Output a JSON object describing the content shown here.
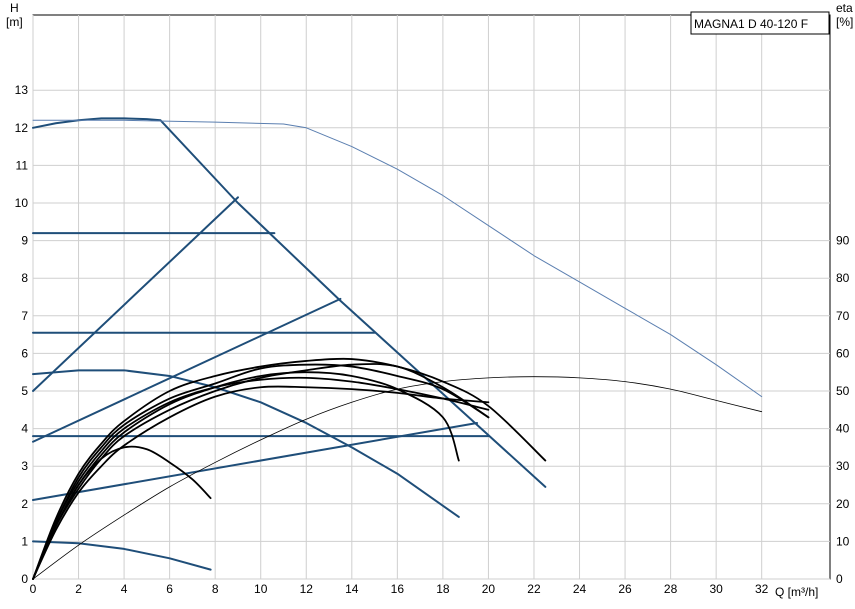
{
  "chart_data": {
    "type": "line",
    "title": "MAGNA1 D 40-120 F",
    "y_left_label": [
      "H",
      "[m]"
    ],
    "y_right_label": [
      "eta",
      "[%]"
    ],
    "x_label": "Q [m³/h]",
    "footnote": "",
    "xlim": [
      0,
      35
    ],
    "ylim_left": [
      0,
      15
    ],
    "ylim_right": [
      0,
      150
    ],
    "x_ticks": [
      0,
      2,
      4,
      6,
      8,
      10,
      12,
      14,
      16,
      18,
      20,
      22,
      24,
      26,
      28,
      30,
      32
    ],
    "y_left_ticks": [
      0,
      1,
      2,
      3,
      4,
      5,
      6,
      7,
      8,
      9,
      10,
      11,
      12,
      13
    ],
    "y_right_ticks": [
      0,
      10,
      20,
      30,
      40,
      50,
      60,
      70,
      80,
      90
    ],
    "grid": true,
    "colors": {
      "pump": "#1f4e79",
      "thin_blue": "#5b7fb0",
      "efficiency": "#000000",
      "grid": "#cfcfcf"
    },
    "series": [
      {
        "kind": "pump",
        "axis": "left",
        "color": "#1f4e79",
        "width": 2,
        "points": [
          [
            0,
            12.0
          ],
          [
            1,
            12.12
          ],
          [
            2,
            12.2
          ],
          [
            3,
            12.25
          ],
          [
            4,
            12.25
          ],
          [
            5,
            12.23
          ],
          [
            5.6,
            12.2
          ],
          [
            9.0,
            10.0
          ],
          [
            13.5,
            7.4
          ],
          [
            22.5,
            2.45
          ]
        ]
      },
      {
        "kind": "pump",
        "axis": "left",
        "color": "#1f4e79",
        "width": 2,
        "points": [
          [
            0,
            9.2
          ],
          [
            10.6,
            9.2
          ]
        ]
      },
      {
        "kind": "pump",
        "axis": "left",
        "color": "#1f4e79",
        "width": 2,
        "points": [
          [
            0,
            6.55
          ],
          [
            15.0,
            6.55
          ]
        ]
      },
      {
        "kind": "pump",
        "axis": "left",
        "color": "#1f4e79",
        "width": 2,
        "points": [
          [
            0,
            3.8
          ],
          [
            20.0,
            3.8
          ]
        ]
      },
      {
        "kind": "pump",
        "axis": "left",
        "color": "#1f4e79",
        "width": 2,
        "points": [
          [
            0,
            5.0
          ],
          [
            9.0,
            10.15
          ]
        ]
      },
      {
        "kind": "pump",
        "axis": "left",
        "color": "#1f4e79",
        "width": 2,
        "points": [
          [
            0,
            3.65
          ],
          [
            13.5,
            7.45
          ]
        ]
      },
      {
        "kind": "pump",
        "axis": "left",
        "color": "#1f4e79",
        "width": 2,
        "points": [
          [
            0,
            2.1
          ],
          [
            19.5,
            4.15
          ]
        ]
      },
      {
        "kind": "pump",
        "axis": "left",
        "color": "#1f4e79",
        "width": 2,
        "points": [
          [
            0,
            5.45
          ],
          [
            2,
            5.55
          ],
          [
            4,
            5.55
          ],
          [
            6,
            5.4
          ],
          [
            8,
            5.1
          ],
          [
            10,
            4.7
          ],
          [
            12,
            4.15
          ],
          [
            14,
            3.5
          ],
          [
            16,
            2.8
          ],
          [
            18.7,
            1.65
          ]
        ]
      },
      {
        "kind": "pump",
        "axis": "left",
        "color": "#1f4e79",
        "width": 2,
        "points": [
          [
            0,
            1.0
          ],
          [
            2,
            0.95
          ],
          [
            4,
            0.8
          ],
          [
            6,
            0.55
          ],
          [
            7.8,
            0.25
          ]
        ]
      },
      {
        "kind": "pump",
        "axis": "left",
        "color": "#5b7fb0",
        "width": 1,
        "points": [
          [
            0,
            12.2
          ],
          [
            4,
            12.2
          ],
          [
            8,
            12.15
          ],
          [
            11,
            12.1
          ],
          [
            12,
            12.0
          ],
          [
            14,
            11.5
          ],
          [
            16,
            10.9
          ],
          [
            18,
            10.2
          ],
          [
            20,
            9.4
          ],
          [
            22,
            8.6
          ],
          [
            24,
            7.9
          ],
          [
            26,
            7.2
          ],
          [
            28,
            6.5
          ],
          [
            30,
            5.7
          ],
          [
            32,
            4.85
          ]
        ]
      },
      {
        "kind": "efficiency",
        "axis": "right",
        "color": "#000000",
        "width": 0.8,
        "points": [
          [
            0,
            0
          ],
          [
            2,
            9
          ],
          [
            4,
            17
          ],
          [
            6,
            24.5
          ],
          [
            8,
            31
          ],
          [
            10,
            37
          ],
          [
            12,
            42.5
          ],
          [
            14,
            47
          ],
          [
            16,
            50.5
          ],
          [
            18,
            52.5
          ],
          [
            20,
            53.5
          ],
          [
            22,
            53.8
          ],
          [
            24,
            53.5
          ],
          [
            26,
            52.5
          ],
          [
            28,
            50.5
          ],
          [
            30,
            47.5
          ],
          [
            32,
            44.5
          ]
        ]
      },
      {
        "kind": "efficiency",
        "axis": "right",
        "color": "#000000",
        "width": 1.8,
        "points": [
          [
            0,
            0
          ],
          [
            1,
            14
          ],
          [
            2,
            25
          ],
          [
            3,
            32
          ],
          [
            4,
            35
          ],
          [
            5,
            34.5
          ],
          [
            6,
            31
          ],
          [
            7,
            26.5
          ],
          [
            7.8,
            21.5
          ]
        ]
      },
      {
        "kind": "efficiency",
        "axis": "right",
        "color": "#000000",
        "width": 1.8,
        "points": [
          [
            0,
            0
          ],
          [
            1,
            14
          ],
          [
            2,
            25
          ],
          [
            3,
            33
          ],
          [
            4,
            39
          ],
          [
            6,
            46.5
          ],
          [
            8,
            51
          ],
          [
            10,
            54
          ],
          [
            12,
            55
          ],
          [
            14,
            54
          ],
          [
            16,
            50.5
          ],
          [
            18,
            43
          ],
          [
            18.7,
            31.5
          ]
        ]
      },
      {
        "kind": "efficiency",
        "axis": "right",
        "color": "#000000",
        "width": 1.8,
        "points": [
          [
            0,
            0
          ],
          [
            1,
            15
          ],
          [
            2,
            26
          ],
          [
            3,
            34
          ],
          [
            4,
            40
          ],
          [
            6,
            47
          ],
          [
            8,
            51
          ],
          [
            10,
            53
          ],
          [
            12,
            53.5
          ],
          [
            14,
            52.5
          ],
          [
            16,
            50.5
          ],
          [
            18,
            48
          ],
          [
            20,
            45
          ]
        ]
      },
      {
        "kind": "efficiency",
        "axis": "right",
        "color": "#000000",
        "width": 1.8,
        "points": [
          [
            0,
            0
          ],
          [
            1,
            15
          ],
          [
            2,
            27
          ],
          [
            3,
            35
          ],
          [
            4,
            41
          ],
          [
            6,
            48
          ],
          [
            8,
            52
          ],
          [
            10,
            56
          ],
          [
            12,
            57
          ],
          [
            14,
            56.5
          ],
          [
            16,
            54
          ],
          [
            18,
            50.5
          ],
          [
            20,
            43
          ]
        ]
      },
      {
        "kind": "efficiency",
        "axis": "right",
        "color": "#000000",
        "width": 1.8,
        "points": [
          [
            0,
            0
          ],
          [
            1,
            16
          ],
          [
            2,
            28
          ],
          [
            3,
            36
          ],
          [
            4,
            42
          ],
          [
            6,
            50
          ],
          [
            8,
            54
          ],
          [
            10,
            56.5
          ],
          [
            12,
            58
          ],
          [
            14,
            58.5
          ],
          [
            16,
            56.5
          ],
          [
            18,
            52.5
          ],
          [
            20,
            46
          ],
          [
            22.5,
            31.5
          ]
        ]
      },
      {
        "kind": "efficiency",
        "axis": "right",
        "color": "#000000",
        "width": 1.8,
        "points": [
          [
            0,
            0
          ],
          [
            1,
            13
          ],
          [
            2,
            23
          ],
          [
            3,
            30
          ],
          [
            4,
            35.5
          ],
          [
            6,
            43
          ],
          [
            8,
            48.5
          ],
          [
            10,
            51
          ],
          [
            12,
            51
          ],
          [
            14,
            50.5
          ],
          [
            16,
            49.5
          ],
          [
            18,
            48
          ],
          [
            20,
            47
          ]
        ]
      },
      {
        "kind": "efficiency",
        "axis": "right",
        "color": "#000000",
        "width": 1.8,
        "points": [
          [
            0,
            0
          ],
          [
            1,
            14
          ],
          [
            2,
            24
          ],
          [
            3,
            32
          ],
          [
            4,
            38
          ],
          [
            6,
            45
          ],
          [
            8,
            50
          ],
          [
            10,
            53.5
          ],
          [
            12,
            55.5
          ],
          [
            14,
            57
          ],
          [
            16,
            56.5
          ],
          [
            18,
            51
          ],
          [
            20,
            43
          ]
        ]
      }
    ]
  }
}
